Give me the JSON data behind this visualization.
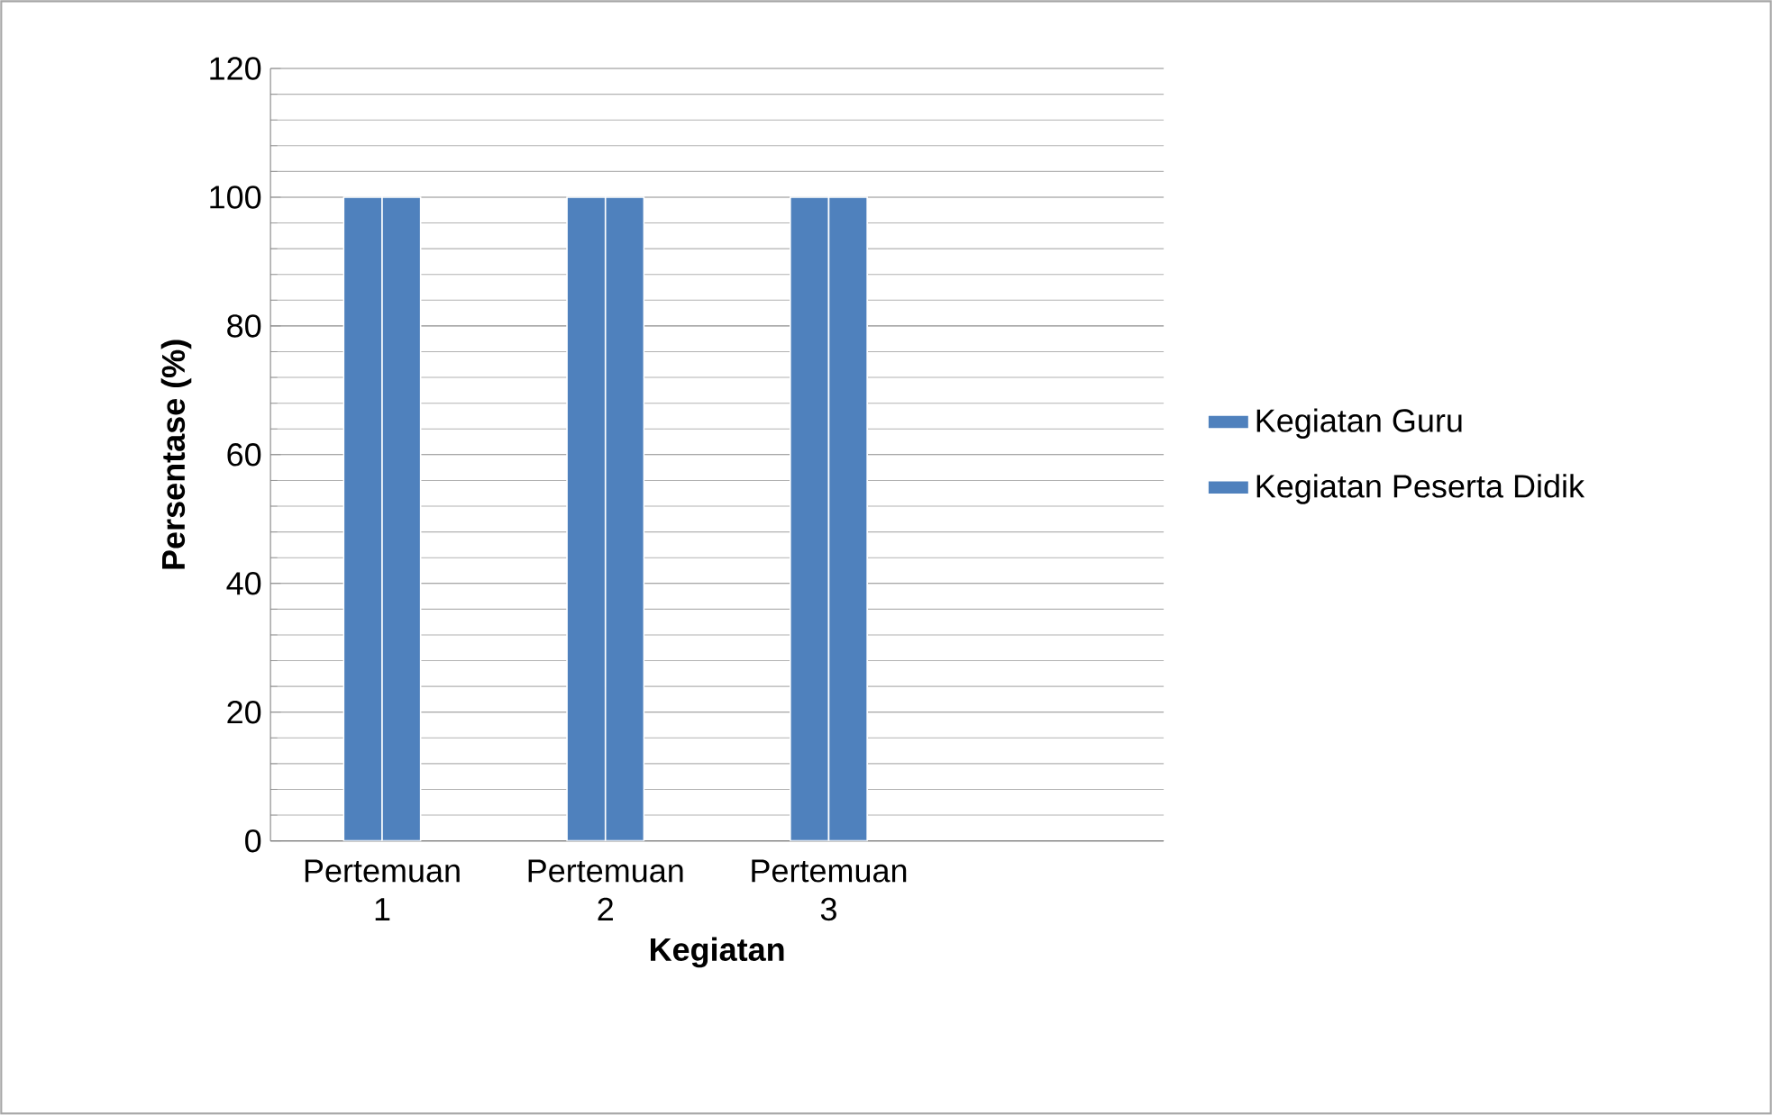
{
  "chart_data": {
    "type": "bar",
    "xlabel": "Kegiatan",
    "ylabel": "Persentase (%)",
    "categories": [
      "Pertemuan 1",
      "Pertemuan 2",
      "Pertemuan 3",
      null
    ],
    "series": [
      {
        "name": "Kegiatan Guru",
        "color": "#4f81bd",
        "values": [
          100,
          100,
          100,
          null
        ]
      },
      {
        "name": "Kegiatan Peserta Didik",
        "color": "#4f81bd",
        "values": [
          100,
          100,
          100,
          null
        ]
      }
    ],
    "ylim": [
      0,
      120
    ],
    "yticks": [
      0,
      20,
      40,
      60,
      80,
      100,
      120
    ],
    "grid": "y",
    "legend": "right"
  }
}
